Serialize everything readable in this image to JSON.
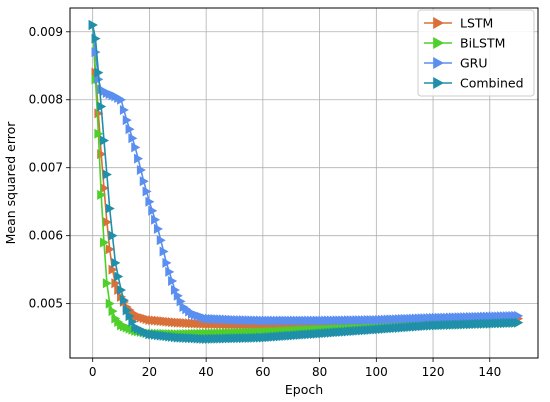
{
  "chart_data": {
    "type": "line",
    "title": "",
    "xlabel": "Epoch",
    "ylabel": "Mean squared error",
    "xlim": [
      -8,
      157
    ],
    "ylim": [
      0.0042,
      0.00935
    ],
    "xticks": [
      0,
      20,
      40,
      60,
      80,
      100,
      120,
      140
    ],
    "xtick_labels": [
      "0",
      "20",
      "40",
      "60",
      "80",
      "100",
      "120",
      "140"
    ],
    "yticks": [
      0.005,
      0.006,
      0.007,
      0.008,
      0.009
    ],
    "ytick_labels": [
      "0.005",
      "0.006",
      "0.007",
      "0.008",
      "0.009"
    ],
    "grid": true,
    "legend_position": "top-right",
    "series": [
      {
        "name": "LSTM",
        "color": "#d9703a",
        "points": [
          [
            0,
            0.0091
          ],
          [
            1,
            0.0084
          ],
          [
            2,
            0.0078
          ],
          [
            3,
            0.0072
          ],
          [
            4,
            0.0067
          ],
          [
            5,
            0.0062
          ],
          [
            6,
            0.0058
          ],
          [
            7,
            0.0055
          ],
          [
            8,
            0.0053
          ],
          [
            10,
            0.0051
          ],
          [
            12,
            0.00495
          ],
          [
            15,
            0.00482
          ],
          [
            20,
            0.00476
          ],
          [
            30,
            0.00472
          ],
          [
            40,
            0.0047
          ],
          [
            60,
            0.00468
          ],
          [
            80,
            0.00469
          ],
          [
            100,
            0.00471
          ],
          [
            120,
            0.00473
          ],
          [
            150,
            0.00478
          ]
        ]
      },
      {
        "name": "BiLSTM",
        "color": "#4ecf2a",
        "points": [
          [
            0,
            0.0091
          ],
          [
            1,
            0.0083
          ],
          [
            2,
            0.0075
          ],
          [
            3,
            0.0066
          ],
          [
            4,
            0.0059
          ],
          [
            5,
            0.0053
          ],
          [
            6,
            0.005
          ],
          [
            8,
            0.00478
          ],
          [
            10,
            0.00468
          ],
          [
            15,
            0.0046
          ],
          [
            20,
            0.00456
          ],
          [
            30,
            0.00455
          ],
          [
            40,
            0.00456
          ],
          [
            60,
            0.00458
          ],
          [
            80,
            0.00462
          ],
          [
            100,
            0.00466
          ],
          [
            120,
            0.00468
          ],
          [
            150,
            0.00472
          ]
        ]
      },
      {
        "name": "GRU",
        "color": "#5a8ff0",
        "points": [
          [
            0,
            0.0091
          ],
          [
            1,
            0.0087
          ],
          [
            2,
            0.0083
          ],
          [
            3,
            0.00815
          ],
          [
            5,
            0.0081
          ],
          [
            8,
            0.00805
          ],
          [
            10,
            0.008
          ],
          [
            12,
            0.0077
          ],
          [
            15,
            0.0073
          ],
          [
            18,
            0.0068
          ],
          [
            20,
            0.0065
          ],
          [
            23,
            0.0061
          ],
          [
            26,
            0.0056
          ],
          [
            29,
            0.0052
          ],
          [
            32,
            0.00495
          ],
          [
            35,
            0.00485
          ],
          [
            40,
            0.00478
          ],
          [
            50,
            0.00476
          ],
          [
            60,
            0.00475
          ],
          [
            80,
            0.00475
          ],
          [
            100,
            0.00476
          ],
          [
            120,
            0.00479
          ],
          [
            150,
            0.00482
          ]
        ]
      },
      {
        "name": "Combined",
        "color": "#1f8faa",
        "points": [
          [
            0,
            0.0091
          ],
          [
            1,
            0.0089
          ],
          [
            2,
            0.0084
          ],
          [
            3,
            0.0079
          ],
          [
            4,
            0.0074
          ],
          [
            5,
            0.0069
          ],
          [
            6,
            0.0064
          ],
          [
            7,
            0.006
          ],
          [
            8,
            0.0056
          ],
          [
            10,
            0.0052
          ],
          [
            12,
            0.0049
          ],
          [
            15,
            0.00465
          ],
          [
            20,
            0.00455
          ],
          [
            30,
            0.0045
          ],
          [
            40,
            0.00448
          ],
          [
            60,
            0.0045
          ],
          [
            80,
            0.00456
          ],
          [
            100,
            0.00462
          ],
          [
            120,
            0.00468
          ],
          [
            150,
            0.00472
          ]
        ]
      }
    ]
  }
}
